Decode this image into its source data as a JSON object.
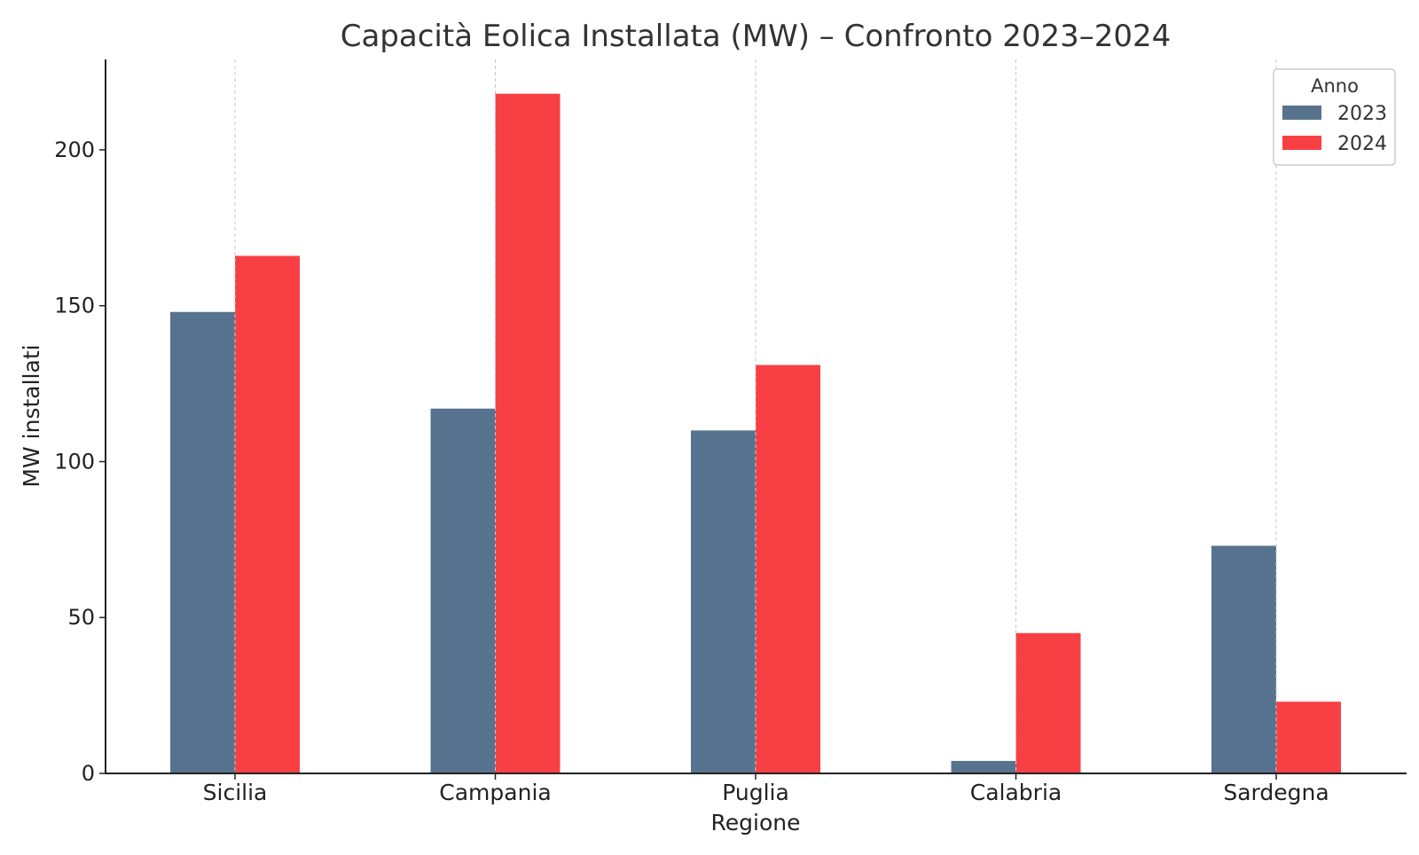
{
  "chart_data": {
    "type": "bar",
    "title": "Capacità Eolica Installata (MW) – Confronto 2023–2024",
    "xlabel": "Regione",
    "ylabel": "MW installati",
    "categories": [
      "Sicilia",
      "Campania",
      "Puglia",
      "Calabria",
      "Sardegna"
    ],
    "series": [
      {
        "name": "2023",
        "color": "#57738f",
        "values": [
          148,
          117,
          110,
          4,
          73
        ]
      },
      {
        "name": "2024",
        "color": "#f84044",
        "values": [
          166,
          218,
          131,
          45,
          23
        ]
      }
    ],
    "ylim": [
      0,
      229
    ],
    "yticks": [
      0,
      50,
      100,
      150,
      200
    ],
    "grid": "x-dashed",
    "legend": {
      "title": "Anno",
      "placement": "top-right"
    }
  }
}
